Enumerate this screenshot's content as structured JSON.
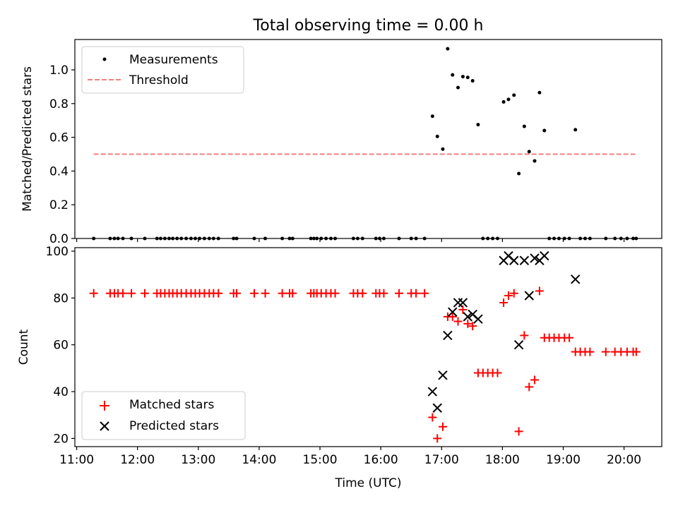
{
  "chart_data": [
    {
      "type": "scatter",
      "title": "Total observing time = 0.00 h",
      "xlabel": "",
      "ylabel": "Matched/Predicted stars",
      "xlim": [
        10.97,
        20.62
      ],
      "ylim": [
        0,
        1.18
      ],
      "yticks": [
        0.0,
        0.2,
        0.4,
        0.6,
        0.8,
        1.0
      ],
      "ytick_labels": [
        "0.0",
        "0.2",
        "0.4",
        "0.6",
        "0.8",
        "1.0"
      ],
      "grid": false,
      "legend_position": "upper-left",
      "series": [
        {
          "name": "Measurements",
          "kind": "points",
          "color": "#000000",
          "points": [
            [
              11.28,
              0
            ],
            [
              11.55,
              0
            ],
            [
              11.62,
              0
            ],
            [
              11.68,
              0
            ],
            [
              11.76,
              0
            ],
            [
              11.9,
              0
            ],
            [
              12.12,
              0
            ],
            [
              12.32,
              0
            ],
            [
              12.38,
              0
            ],
            [
              12.45,
              0
            ],
            [
              12.52,
              0
            ],
            [
              12.58,
              0
            ],
            [
              12.65,
              0
            ],
            [
              12.72,
              0
            ],
            [
              12.8,
              0
            ],
            [
              12.88,
              0
            ],
            [
              12.95,
              0
            ],
            [
              13.02,
              0
            ],
            [
              13.1,
              0
            ],
            [
              13.18,
              0
            ],
            [
              13.25,
              0
            ],
            [
              13.33,
              0
            ],
            [
              13.58,
              0
            ],
            [
              13.63,
              0
            ],
            [
              13.92,
              0
            ],
            [
              14.1,
              0
            ],
            [
              14.38,
              0
            ],
            [
              14.5,
              0
            ],
            [
              14.55,
              0
            ],
            [
              14.85,
              0
            ],
            [
              14.9,
              0
            ],
            [
              14.95,
              0
            ],
            [
              15.02,
              0
            ],
            [
              15.1,
              0
            ],
            [
              15.18,
              0
            ],
            [
              15.25,
              0
            ],
            [
              15.55,
              0
            ],
            [
              15.62,
              0
            ],
            [
              15.7,
              0
            ],
            [
              15.92,
              0
            ],
            [
              15.98,
              0
            ],
            [
              16.05,
              0
            ],
            [
              16.3,
              0
            ],
            [
              16.5,
              0
            ],
            [
              16.58,
              0
            ],
            [
              16.72,
              0
            ],
            [
              16.85,
              0.725
            ],
            [
              16.93,
              0.605
            ],
            [
              17.02,
              0.53
            ],
            [
              17.1,
              1.125
            ],
            [
              17.18,
              0.97
            ],
            [
              17.27,
              0.895
            ],
            [
              17.35,
              0.96
            ],
            [
              17.43,
              0.955
            ],
            [
              17.51,
              0.935
            ],
            [
              17.6,
              0.675
            ],
            [
              17.68,
              0
            ],
            [
              17.76,
              0
            ],
            [
              17.84,
              0
            ],
            [
              17.92,
              0
            ],
            [
              18.02,
              0.81
            ],
            [
              18.1,
              0.825
            ],
            [
              18.19,
              0.85
            ],
            [
              18.27,
              0.385
            ],
            [
              18.36,
              0.665
            ],
            [
              18.44,
              0.515
            ],
            [
              18.53,
              0.46
            ],
            [
              18.61,
              0.865
            ],
            [
              18.69,
              0.64
            ],
            [
              18.77,
              0
            ],
            [
              18.85,
              0
            ],
            [
              18.93,
              0
            ],
            [
              19.02,
              0
            ],
            [
              19.1,
              0
            ],
            [
              19.2,
              0.645
            ],
            [
              19.28,
              0
            ],
            [
              19.36,
              0
            ],
            [
              19.44,
              0
            ],
            [
              19.7,
              0
            ],
            [
              19.85,
              0
            ],
            [
              19.95,
              0
            ],
            [
              20.05,
              0
            ],
            [
              20.15,
              0
            ],
            [
              20.2,
              0
            ]
          ]
        },
        {
          "name": "Threshold",
          "kind": "dashed-line",
          "color": "#f08080",
          "x": [
            11.28,
            20.2
          ],
          "y": [
            0.5,
            0.5
          ]
        }
      ]
    },
    {
      "type": "scatter",
      "title": "",
      "xlabel": "Time (UTC)",
      "ylabel": "Count",
      "xlim": [
        10.97,
        20.62
      ],
      "ylim": [
        16.5,
        101.5
      ],
      "xticks": [
        11,
        12,
        13,
        14,
        15,
        16,
        17,
        18,
        19,
        20
      ],
      "xtick_labels": [
        "11:00",
        "12:00",
        "13:00",
        "14:00",
        "15:00",
        "16:00",
        "17:00",
        "18:00",
        "19:00",
        "20:00"
      ],
      "yticks": [
        20,
        40,
        60,
        80,
        100
      ],
      "ytick_labels": [
        "20",
        "40",
        "60",
        "80",
        "100"
      ],
      "grid": false,
      "legend_position": "lower-left",
      "series": [
        {
          "name": "Matched stars",
          "kind": "plus",
          "color": "#ff0000",
          "points": [
            [
              11.28,
              82
            ],
            [
              11.55,
              82
            ],
            [
              11.62,
              82
            ],
            [
              11.68,
              82
            ],
            [
              11.76,
              82
            ],
            [
              11.9,
              82
            ],
            [
              12.12,
              82
            ],
            [
              12.32,
              82
            ],
            [
              12.38,
              82
            ],
            [
              12.45,
              82
            ],
            [
              12.52,
              82
            ],
            [
              12.58,
              82
            ],
            [
              12.65,
              82
            ],
            [
              12.72,
              82
            ],
            [
              12.8,
              82
            ],
            [
              12.88,
              82
            ],
            [
              12.95,
              82
            ],
            [
              13.02,
              82
            ],
            [
              13.1,
              82
            ],
            [
              13.18,
              82
            ],
            [
              13.25,
              82
            ],
            [
              13.33,
              82
            ],
            [
              13.58,
              82
            ],
            [
              13.63,
              82
            ],
            [
              13.92,
              82
            ],
            [
              14.1,
              82
            ],
            [
              14.38,
              82
            ],
            [
              14.5,
              82
            ],
            [
              14.55,
              82
            ],
            [
              14.85,
              82
            ],
            [
              14.9,
              82
            ],
            [
              14.95,
              82
            ],
            [
              15.02,
              82
            ],
            [
              15.1,
              82
            ],
            [
              15.18,
              82
            ],
            [
              15.25,
              82
            ],
            [
              15.55,
              82
            ],
            [
              15.62,
              82
            ],
            [
              15.7,
              82
            ],
            [
              15.92,
              82
            ],
            [
              15.98,
              82
            ],
            [
              16.05,
              82
            ],
            [
              16.3,
              82
            ],
            [
              16.5,
              82
            ],
            [
              16.58,
              82
            ],
            [
              16.72,
              82
            ],
            [
              16.85,
              29
            ],
            [
              16.93,
              20
            ],
            [
              17.02,
              25
            ],
            [
              17.1,
              72
            ],
            [
              17.18,
              72
            ],
            [
              17.27,
              70
            ],
            [
              17.35,
              75
            ],
            [
              17.43,
              69
            ],
            [
              17.51,
              68
            ],
            [
              17.6,
              48
            ],
            [
              17.68,
              48
            ],
            [
              17.76,
              48
            ],
            [
              17.84,
              48
            ],
            [
              17.92,
              48
            ],
            [
              18.02,
              78
            ],
            [
              18.1,
              81
            ],
            [
              18.19,
              82
            ],
            [
              18.27,
              23
            ],
            [
              18.36,
              64
            ],
            [
              18.44,
              42
            ],
            [
              18.53,
              45
            ],
            [
              18.61,
              83
            ],
            [
              18.69,
              63
            ],
            [
              18.77,
              63
            ],
            [
              18.85,
              63
            ],
            [
              18.93,
              63
            ],
            [
              19.02,
              63
            ],
            [
              19.1,
              63
            ],
            [
              19.2,
              57
            ],
            [
              19.28,
              57
            ],
            [
              19.36,
              57
            ],
            [
              19.44,
              57
            ],
            [
              19.7,
              57
            ],
            [
              19.85,
              57
            ],
            [
              19.95,
              57
            ],
            [
              20.05,
              57
            ],
            [
              20.15,
              57
            ],
            [
              20.2,
              57
            ]
          ]
        },
        {
          "name": "Predicted stars",
          "kind": "cross",
          "color": "#000000",
          "points": [
            [
              16.85,
              40
            ],
            [
              16.93,
              33
            ],
            [
              17.02,
              47
            ],
            [
              17.1,
              64
            ],
            [
              17.18,
              74
            ],
            [
              17.27,
              78
            ],
            [
              17.35,
              78
            ],
            [
              17.43,
              72
            ],
            [
              17.51,
              73
            ],
            [
              17.6,
              71
            ],
            [
              18.02,
              96
            ],
            [
              18.1,
              98
            ],
            [
              18.19,
              96
            ],
            [
              18.27,
              60
            ],
            [
              18.36,
              96
            ],
            [
              18.44,
              81
            ],
            [
              18.53,
              97
            ],
            [
              18.61,
              96
            ],
            [
              18.69,
              98
            ],
            [
              19.2,
              88
            ]
          ]
        }
      ]
    }
  ]
}
